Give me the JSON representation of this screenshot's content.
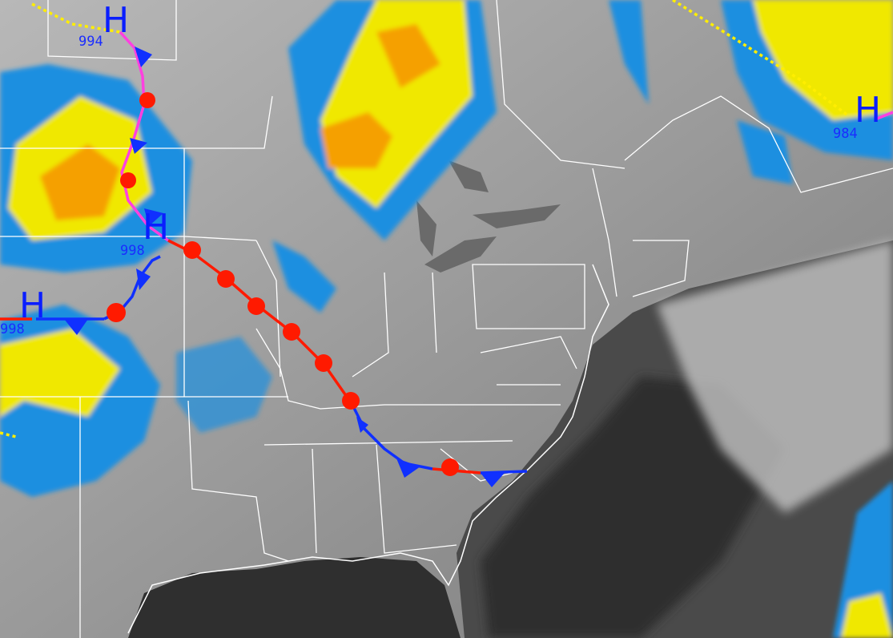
{
  "colors": {
    "land": "#9a9a9a",
    "ocean": "#3a3a3a",
    "cloud_low": "#1a8fe0",
    "cloud_mid": "#f0e800",
    "cloud_high": "#f5a000",
    "boundaries": "#ffffff",
    "cold_front": "#1030ff",
    "warm_front": "#ff1a00",
    "occluded_front": "#ff40e0",
    "trough": "#ffee00",
    "pressure_label": "#1a2cff"
  },
  "pressure_centers": [
    {
      "symbol": "H",
      "value": "994"
    },
    {
      "symbol": "H",
      "value": "998"
    },
    {
      "symbol": "H",
      "value": "998"
    },
    {
      "symbol": "H",
      "value": "984"
    }
  ]
}
